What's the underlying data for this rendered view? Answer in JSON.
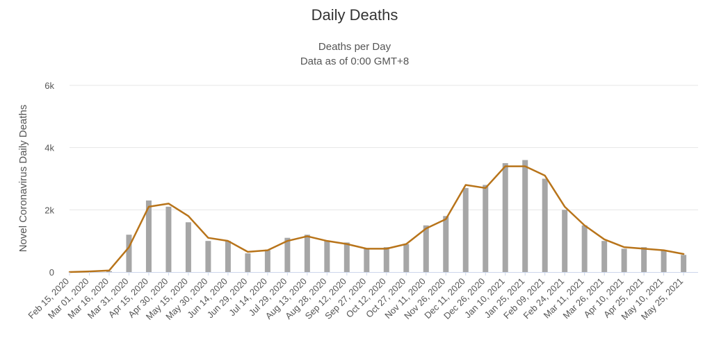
{
  "chart_data": {
    "type": "bar",
    "title": "Daily Deaths",
    "subtitle_lines": [
      "Deaths per Day",
      "Data as of 0:00 GMT+8"
    ],
    "xlabel": "",
    "ylabel": "Novel Coronavirus Daily Deaths",
    "ylim": [
      0,
      6000
    ],
    "y_ticks": [
      0,
      2000,
      4000,
      6000
    ],
    "y_tick_labels": [
      "0",
      "2k",
      "4k",
      "6k"
    ],
    "x_start": "Feb 15, 2020",
    "x_end": "Jun 5, 2021",
    "x_tick_labels": [
      "Feb 15, 2020",
      "Mar 01, 2020",
      "Mar 16, 2020",
      "Mar 31, 2020",
      "Apr 15, 2020",
      "Apr 30, 2020",
      "May 15, 2020",
      "May 30, 2020",
      "Jun 14, 2020",
      "Jun 29, 2020",
      "Jul 14, 2020",
      "Jul 29, 2020",
      "Aug 13, 2020",
      "Aug 28, 2020",
      "Sep 12, 2020",
      "Sep 27, 2020",
      "Oct 12, 2020",
      "Oct 27, 2020",
      "Nov 11, 2020",
      "Nov 26, 2020",
      "Dec 11, 2020",
      "Dec 26, 2020",
      "Jan 10, 2021",
      "Jan 25, 2021",
      "Feb 09, 2021",
      "Feb 24, 2021",
      "Mar 11, 2021",
      "Mar 26, 2021",
      "Apr 10, 2021",
      "Apr 25, 2021",
      "May 10, 2021",
      "May 25, 2021"
    ],
    "grid": true,
    "legend": "none",
    "bar_color": "#a6a6a6",
    "line_color": "#b8741a",
    "series": [
      {
        "type": "bar",
        "x": [
          "Feb 15, 2020",
          "Mar 01, 2020",
          "Mar 16, 2020",
          "Mar 31, 2020",
          "Apr 15, 2020",
          "Apr 30, 2020",
          "May 15, 2020",
          "May 30, 2020",
          "Jun 14, 2020",
          "Jun 29, 2020",
          "Jul 14, 2020",
          "Jul 29, 2020",
          "Aug 13, 2020",
          "Aug 28, 2020",
          "Sep 12, 2020",
          "Sep 27, 2020",
          "Oct 12, 2020",
          "Oct 27, 2020",
          "Nov 11, 2020",
          "Nov 26, 2020",
          "Dec 11, 2020",
          "Dec 26, 2020",
          "Jan 10, 2021",
          "Jan 25, 2021",
          "Feb 09, 2021",
          "Feb 24, 2021",
          "Mar 11, 2021",
          "Mar 26, 2021",
          "Apr 10, 2021",
          "Apr 25, 2021",
          "May 10, 2021",
          "May 25, 2021"
        ],
        "values": [
          0,
          2,
          30,
          1200,
          2300,
          2100,
          1600,
          1000,
          1000,
          600,
          700,
          1100,
          1200,
          1000,
          950,
          750,
          800,
          900,
          1500,
          1800,
          2700,
          2800,
          3500,
          3600,
          3000,
          2000,
          1500,
          1000,
          750,
          800,
          700,
          550
        ]
      },
      {
        "type": "line",
        "x": [
          "Feb 15, 2020",
          "Mar 01, 2020",
          "Mar 16, 2020",
          "Mar 31, 2020",
          "Apr 15, 2020",
          "Apr 30, 2020",
          "May 15, 2020",
          "May 30, 2020",
          "Jun 14, 2020",
          "Jun 29, 2020",
          "Jul 14, 2020",
          "Jul 29, 2020",
          "Aug 13, 2020",
          "Aug 28, 2020",
          "Sep 12, 2020",
          "Sep 27, 2020",
          "Oct 12, 2020",
          "Oct 27, 2020",
          "Nov 11, 2020",
          "Nov 26, 2020",
          "Dec 11, 2020",
          "Dec 26, 2020",
          "Jan 10, 2021",
          "Jan 25, 2021",
          "Feb 09, 2021",
          "Feb 24, 2021",
          "Mar 11, 2021",
          "Mar 26, 2021",
          "Apr 10, 2021",
          "Apr 25, 2021",
          "May 10, 2021",
          "May 25, 2021"
        ],
        "values": [
          0,
          20,
          50,
          800,
          2100,
          2200,
          1800,
          1100,
          1000,
          650,
          700,
          1000,
          1150,
          1000,
          900,
          750,
          750,
          900,
          1400,
          1700,
          2800,
          2700,
          3400,
          3400,
          3100,
          2100,
          1500,
          1050,
          800,
          750,
          700,
          580
        ]
      }
    ]
  }
}
